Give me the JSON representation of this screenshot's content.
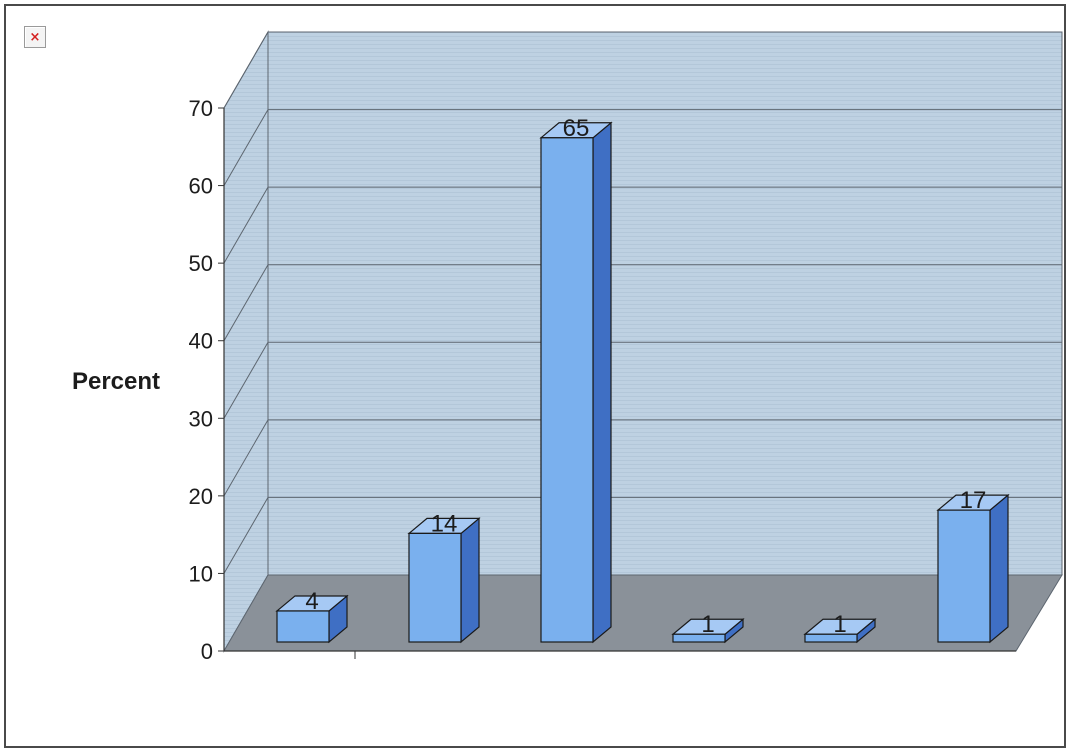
{
  "colors": {
    "bar_front": "#7ab0ee",
    "bar_side": "#3f6fc4",
    "bar_top": "#a6c9f4",
    "wall": "#bdd0e0",
    "floor": "#8a9199",
    "gridline": "#5d6670",
    "frame": "#4a4a4a",
    "broken_icon": "#d42020"
  },
  "broken_image_icon": {
    "icon": "broken-image-icon",
    "glyph": "×"
  },
  "chart_data": {
    "type": "bar",
    "style": "3d-column",
    "categories": [
      "",
      "",
      "",
      "",
      "",
      ""
    ],
    "values": [
      4,
      14,
      65,
      1,
      1,
      17
    ],
    "data_labels": [
      "4",
      "14",
      "65",
      "1",
      "1",
      "17"
    ],
    "title": "",
    "xlabel": "",
    "ylabel": "Percent",
    "ylim": [
      0,
      70
    ],
    "yticks": [
      0,
      10,
      20,
      30,
      40,
      50,
      60,
      70
    ],
    "ytick_labels": [
      "0",
      "10",
      "20",
      "30",
      "40",
      "50",
      "60",
      "70"
    ],
    "grid": true,
    "legend": "none"
  }
}
